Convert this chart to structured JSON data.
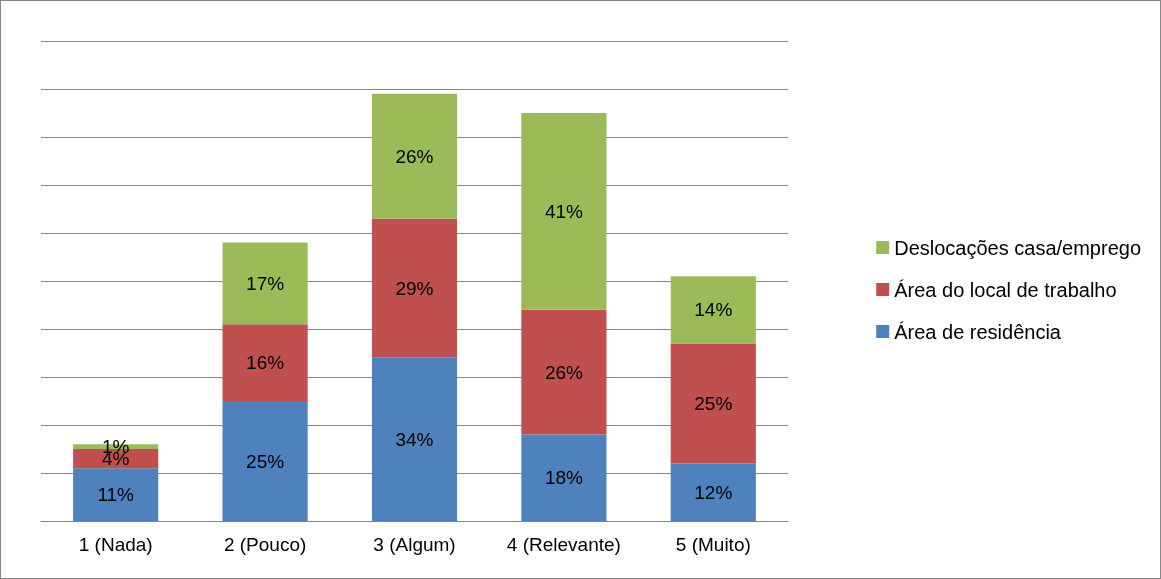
{
  "chart_data": {
    "type": "bar",
    "stacked": true,
    "categories": [
      "1 (Nada)",
      "2 (Pouco)",
      "3 (Algum)",
      "4 (Relevante)",
      "5 (Muito)"
    ],
    "series": [
      {
        "name": "Área de residência",
        "color": "#4f81bd",
        "values": [
          11,
          25,
          34,
          18,
          12
        ],
        "value_labels": [
          "11%",
          "25%",
          "34%",
          "18%",
          "12%"
        ]
      },
      {
        "name": "Área do local de trabalho",
        "color": "#c0504d",
        "values": [
          4,
          16,
          29,
          26,
          25
        ],
        "value_labels": [
          "4%",
          "16%",
          "29%",
          "26%",
          "25%"
        ]
      },
      {
        "name": "Deslocações casa/emprego",
        "color": "#9bbb59",
        "values": [
          1,
          17,
          26,
          41,
          14
        ],
        "value_labels": [
          "1%",
          "17%",
          "26%",
          "41%",
          "14%"
        ]
      }
    ],
    "ylim": [
      0,
      100
    ],
    "yticks": [
      {
        "value": 0,
        "label": null
      },
      {
        "value": 10,
        "label": null
      },
      {
        "value": 20,
        "label": null
      },
      {
        "value": 30,
        "label": null
      },
      {
        "value": 40,
        "label": null
      },
      {
        "value": 50,
        "label": null
      },
      {
        "value": 60,
        "label": null
      },
      {
        "value": 70,
        "label": null
      },
      {
        "value": 80,
        "label": null
      },
      {
        "value": 90,
        "label": null
      },
      {
        "value": 100,
        "label": null
      }
    ],
    "tick_labels": "x",
    "grid": "y",
    "legend": "right"
  }
}
